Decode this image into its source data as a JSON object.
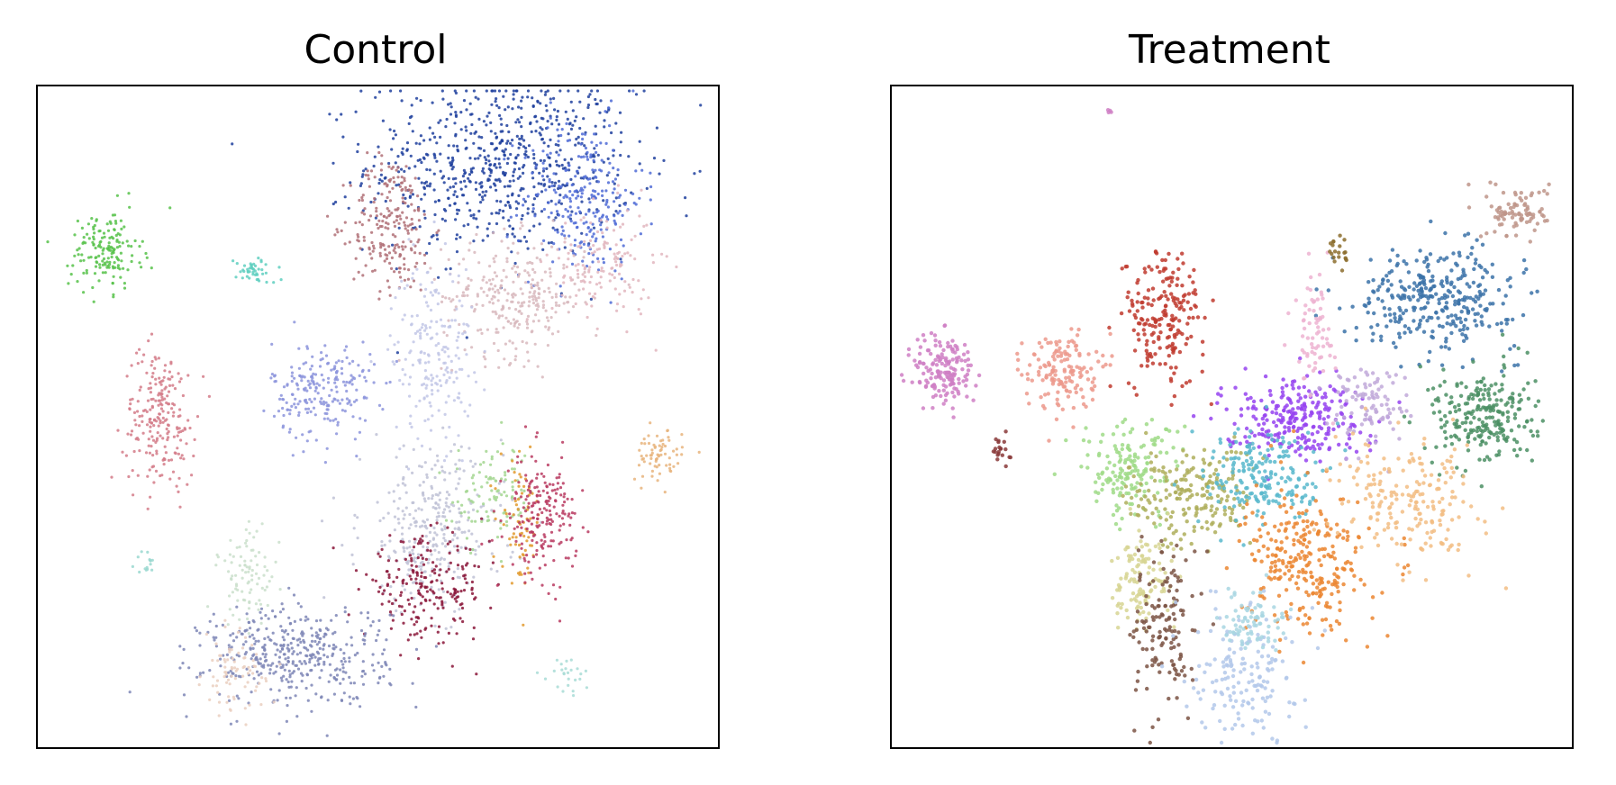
{
  "chart_data": [
    {
      "type": "scatter",
      "title": "Control",
      "xlabel": "",
      "ylabel": "",
      "xlim": [
        0,
        100
      ],
      "ylim": [
        0,
        100
      ],
      "grid": false,
      "ticks": false,
      "legend": "none",
      "clusters": [
        {
          "x": 68,
          "y": 88,
          "sx": 13,
          "sy": 9,
          "count": 700,
          "color": "#1f3f9e"
        },
        {
          "x": 80,
          "y": 83,
          "sx": 6,
          "sy": 8,
          "count": 250,
          "color": "#4f6bd6"
        },
        {
          "x": 52,
          "y": 79,
          "sx": 4,
          "sy": 7,
          "count": 220,
          "color": "#b07077"
        },
        {
          "x": 70,
          "y": 68,
          "sx": 7,
          "sy": 6,
          "count": 280,
          "color": "#d8b9bd"
        },
        {
          "x": 83,
          "y": 73,
          "sx": 5,
          "sy": 6,
          "count": 140,
          "color": "#e2b6be"
        },
        {
          "x": 58,
          "y": 60,
          "sx": 4,
          "sy": 9,
          "count": 200,
          "color": "#c2c7e6"
        },
        {
          "x": 42,
          "y": 54,
          "sx": 5,
          "sy": 5,
          "count": 220,
          "color": "#8c94dc"
        },
        {
          "x": 18,
          "y": 50,
          "sx": 3.5,
          "sy": 7,
          "count": 220,
          "color": "#d47b88"
        },
        {
          "x": 10,
          "y": 75,
          "sx": 3.5,
          "sy": 4,
          "count": 160,
          "color": "#57c24a"
        },
        {
          "x": 32,
          "y": 72,
          "sx": 2,
          "sy": 1.3,
          "count": 45,
          "color": "#5fcfc0"
        },
        {
          "x": 58,
          "y": 33,
          "sx": 7,
          "sy": 8,
          "count": 320,
          "color": "#c0c2d6"
        },
        {
          "x": 57,
          "y": 24,
          "sx": 6,
          "sy": 5,
          "count": 220,
          "color": "#8a1538"
        },
        {
          "x": 67,
          "y": 38,
          "sx": 4,
          "sy": 5,
          "count": 100,
          "color": "#a3d691"
        },
        {
          "x": 71,
          "y": 34,
          "sx": 2,
          "sy": 6,
          "count": 70,
          "color": "#e29a2e"
        },
        {
          "x": 74,
          "y": 35,
          "sx": 3.5,
          "sy": 6,
          "count": 200,
          "color": "#b83a60"
        },
        {
          "x": 38,
          "y": 14,
          "sx": 9,
          "sy": 5,
          "count": 420,
          "color": "#7e86b6"
        },
        {
          "x": 31,
          "y": 26,
          "sx": 3,
          "sy": 5,
          "count": 90,
          "color": "#cadfcb"
        },
        {
          "x": 29,
          "y": 11,
          "sx": 3,
          "sy": 4,
          "count": 80,
          "color": "#eacfbf"
        },
        {
          "x": 91,
          "y": 44,
          "sx": 2.5,
          "sy": 2.5,
          "count": 70,
          "color": "#e7b47d"
        },
        {
          "x": 78,
          "y": 11,
          "sx": 2,
          "sy": 2,
          "count": 25,
          "color": "#a8dcd6"
        },
        {
          "x": 16,
          "y": 28,
          "sx": 1,
          "sy": 1.2,
          "count": 15,
          "color": "#9ad8d0"
        }
      ]
    },
    {
      "type": "scatter",
      "title": "Treatment",
      "xlabel": "",
      "ylabel": "",
      "xlim": [
        0,
        100
      ],
      "ylim": [
        0,
        100
      ],
      "grid": false,
      "ticks": false,
      "legend": "none",
      "clusters": [
        {
          "x": 40,
          "y": 65,
          "sx": 4,
          "sy": 7,
          "count": 200,
          "color": "#c03a2e"
        },
        {
          "x": 80,
          "y": 68,
          "sx": 8,
          "sy": 5,
          "count": 330,
          "color": "#3b72a8"
        },
        {
          "x": 87,
          "y": 50,
          "sx": 5,
          "sy": 5,
          "count": 240,
          "color": "#4b8f64"
        },
        {
          "x": 92,
          "y": 81,
          "sx": 3,
          "sy": 2.5,
          "count": 90,
          "color": "#be9589"
        },
        {
          "x": 8,
          "y": 57,
          "sx": 3,
          "sy": 4,
          "count": 160,
          "color": "#cf7fc4"
        },
        {
          "x": 25,
          "y": 57,
          "sx": 3.5,
          "sy": 4,
          "count": 150,
          "color": "#ec998c"
        },
        {
          "x": 59,
          "y": 50,
          "sx": 7,
          "sy": 4,
          "count": 260,
          "color": "#9543f0"
        },
        {
          "x": 70,
          "y": 52,
          "sx": 4,
          "sy": 4,
          "count": 100,
          "color": "#c1a9d9"
        },
        {
          "x": 35,
          "y": 42,
          "sx": 5,
          "sy": 5,
          "count": 160,
          "color": "#9fdb87"
        },
        {
          "x": 44,
          "y": 38,
          "sx": 6,
          "sy": 5,
          "count": 200,
          "color": "#aeae5a"
        },
        {
          "x": 55,
          "y": 41,
          "sx": 6,
          "sy": 5,
          "count": 200,
          "color": "#59b8cc"
        },
        {
          "x": 61,
          "y": 28,
          "sx": 6,
          "sy": 7,
          "count": 280,
          "color": "#eb8631"
        },
        {
          "x": 76,
          "y": 37,
          "sx": 7,
          "sy": 6,
          "count": 200,
          "color": "#f2bd84"
        },
        {
          "x": 37,
          "y": 25,
          "sx": 3,
          "sy": 5,
          "count": 120,
          "color": "#d7d593"
        },
        {
          "x": 40,
          "y": 18,
          "sx": 3,
          "sy": 8,
          "count": 140,
          "color": "#7b5444"
        },
        {
          "x": 52,
          "y": 12,
          "sx": 5,
          "sy": 7,
          "count": 160,
          "color": "#b3c8ea"
        },
        {
          "x": 53,
          "y": 19,
          "sx": 3,
          "sy": 3,
          "count": 80,
          "color": "#a8d6e2"
        },
        {
          "x": 62,
          "y": 63,
          "sx": 2,
          "sy": 6,
          "count": 70,
          "color": "#edb3d1"
        },
        {
          "x": 66,
          "y": 75,
          "sx": 1,
          "sy": 2,
          "count": 20,
          "color": "#8c6d2d"
        },
        {
          "x": 16,
          "y": 45,
          "sx": 1,
          "sy": 1.5,
          "count": 20,
          "color": "#8a3a3a"
        },
        {
          "x": 32,
          "y": 96,
          "sx": 0.3,
          "sy": 0.3,
          "count": 4,
          "color": "#cf7fc4"
        }
      ]
    }
  ]
}
